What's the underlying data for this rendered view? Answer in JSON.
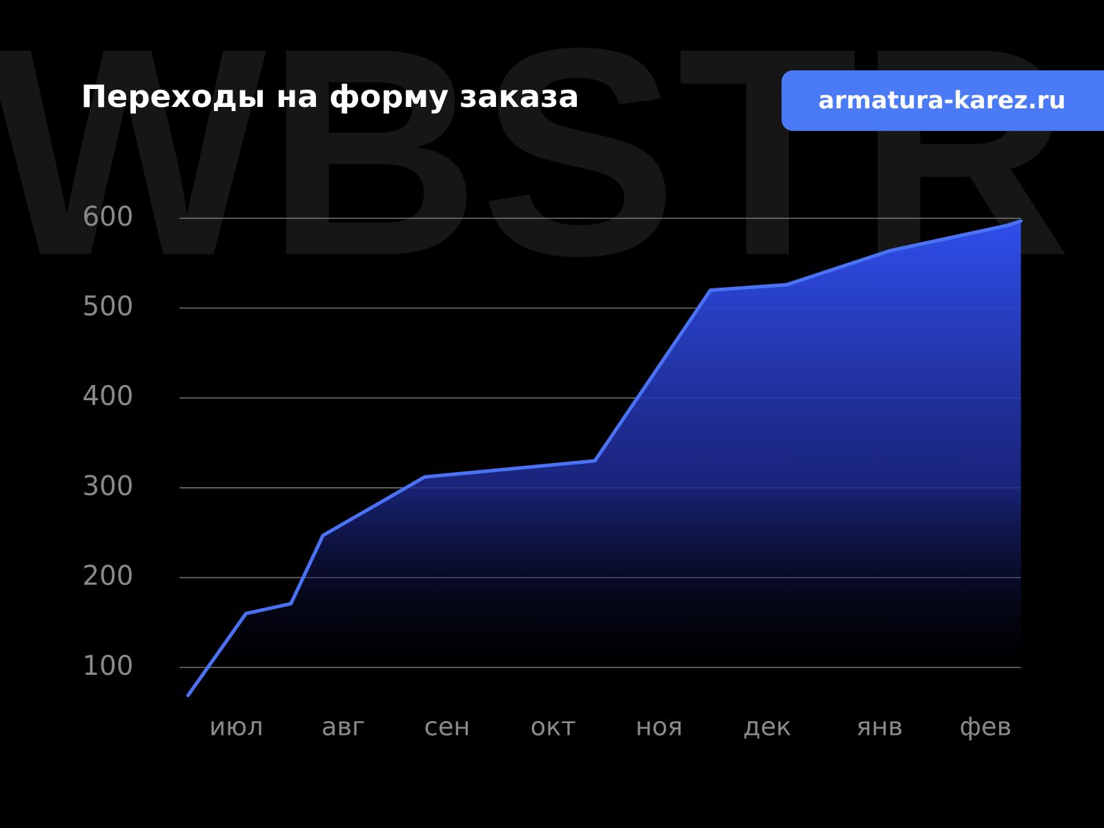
{
  "chart_data": {
    "type": "area-line",
    "title": "Переходы на форму заказа",
    "badge": "armatura-karez.ru",
    "watermark": "WBSTR",
    "x": [
      -0.45,
      0.09,
      0.51,
      0.81,
      1.76,
      3.35,
      4.43,
      5.14,
      6.11,
      7.2,
      7.33
    ],
    "values": [
      69,
      160,
      171,
      247,
      312,
      330,
      520,
      526,
      564,
      592,
      597
    ],
    "color": "#4a72f5",
    "xlim": [
      -0.53,
      7.33
    ],
    "xticks": [
      {
        "value": 0,
        "label": "июл"
      },
      {
        "value": 1,
        "label": "авг"
      },
      {
        "value": 1.97,
        "label": "сен"
      },
      {
        "value": 2.96,
        "label": "окт"
      },
      {
        "value": 3.95,
        "label": "ноя"
      },
      {
        "value": 4.96,
        "label": "дек"
      },
      {
        "value": 6.01,
        "label": "янв"
      },
      {
        "value": 7,
        "label": "фев"
      }
    ],
    "ylim": [
      50,
      620
    ],
    "yticks": [
      100,
      200,
      300,
      400,
      500,
      600
    ],
    "grid": true
  }
}
